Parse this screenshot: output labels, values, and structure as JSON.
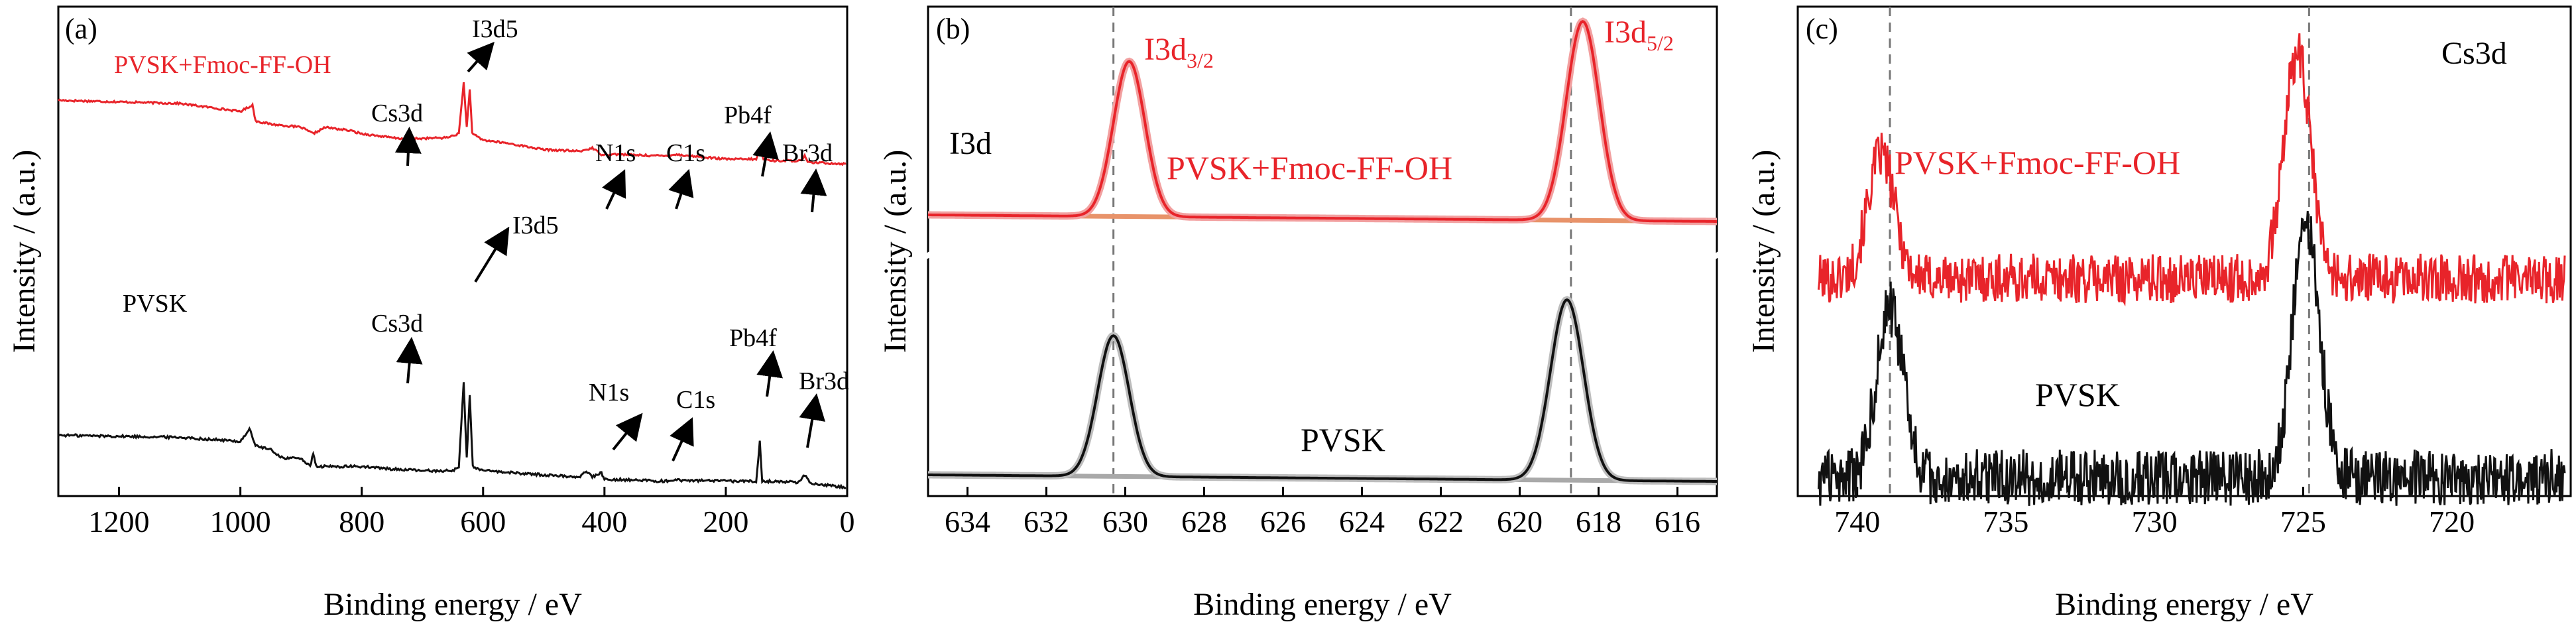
{
  "colors": {
    "red": "#e8242a",
    "black": "#111111",
    "base_red": "#e8936a",
    "base_black": "#a9a9a9",
    "dashed": "#777777"
  },
  "panels": [
    {
      "id": "a",
      "label": "(a)",
      "xlabel": "Binding energy / eV",
      "ylabel": "Intensity / (a.u.)",
      "xlim": [
        1300,
        0
      ],
      "xticks": [
        1200,
        1000,
        800,
        600,
        400,
        200,
        0
      ],
      "series": [
        {
          "name": "PVSK+Fmoc-FF-OH",
          "color_key": "red",
          "points": [
            [
              1300,
              0.87
            ],
            [
              1200,
              0.86
            ],
            [
              1100,
              0.85
            ],
            [
              1000,
              0.8
            ],
            [
              980,
              0.84
            ],
            [
              975,
              0.74
            ],
            [
              950,
              0.72
            ],
            [
              900,
              0.7
            ],
            [
              880,
              0.66
            ],
            [
              860,
              0.7
            ],
            [
              820,
              0.68
            ],
            [
              800,
              0.66
            ],
            [
              760,
              0.64
            ],
            [
              740,
              0.63
            ],
            [
              700,
              0.63
            ],
            [
              660,
              0.635
            ],
            [
              640,
              0.66
            ],
            [
              632,
              0.98
            ],
            [
              627,
              0.7
            ],
            [
              622,
              0.94
            ],
            [
              618,
              0.66
            ],
            [
              600,
              0.62
            ],
            [
              560,
              0.6
            ],
            [
              500,
              0.56
            ],
            [
              440,
              0.55
            ],
            [
              420,
              0.57
            ],
            [
              405,
              0.53
            ],
            [
              380,
              0.53
            ],
            [
              300,
              0.52
            ],
            [
              285,
              0.53
            ],
            [
              200,
              0.5
            ],
            [
              150,
              0.5
            ],
            [
              143,
              0.56
            ],
            [
              138,
              0.5
            ],
            [
              120,
              0.49
            ],
            [
              75,
              0.49
            ],
            [
              70,
              0.52
            ],
            [
              65,
              0.48
            ],
            [
              0,
              0.47
            ]
          ]
        },
        {
          "name": "PVSK",
          "color_key": "black",
          "points": [
            [
              1300,
              0.25
            ],
            [
              1200,
              0.245
            ],
            [
              1100,
              0.24
            ],
            [
              1000,
              0.22
            ],
            [
              985,
              0.28
            ],
            [
              975,
              0.2
            ],
            [
              950,
              0.18
            ],
            [
              930,
              0.14
            ],
            [
              900,
              0.14
            ],
            [
              885,
              0.1
            ],
            [
              880,
              0.16
            ],
            [
              875,
              0.1
            ],
            [
              840,
              0.1
            ],
            [
              800,
              0.1
            ],
            [
              760,
              0.09
            ],
            [
              700,
              0.08
            ],
            [
              650,
              0.08
            ],
            [
              640,
              0.1
            ],
            [
              632,
              0.5
            ],
            [
              627,
              0.14
            ],
            [
              622,
              0.44
            ],
            [
              617,
              0.1
            ],
            [
              600,
              0.08
            ],
            [
              500,
              0.06
            ],
            [
              440,
              0.05
            ],
            [
              430,
              0.08
            ],
            [
              420,
              0.05
            ],
            [
              405,
              0.07
            ],
            [
              400,
              0.04
            ],
            [
              300,
              0.03
            ],
            [
              285,
              0.035
            ],
            [
              200,
              0.03
            ],
            [
              150,
              0.03
            ],
            [
              144,
              0.22
            ],
            [
              140,
              0.03
            ],
            [
              80,
              0.025
            ],
            [
              70,
              0.06
            ],
            [
              60,
              0.02
            ],
            [
              0,
              0.0
            ]
          ]
        }
      ],
      "annotations": [
        {
          "text": "PVSK+Fmoc-FF-OH",
          "color_key": "red"
        },
        {
          "text": "PVSK",
          "color_key": "black"
        },
        {
          "text": "I3d5",
          "color_key": "black"
        },
        {
          "text": "Cs3d",
          "color_key": "black"
        },
        {
          "text": "N1s",
          "color_key": "black"
        },
        {
          "text": "C1s",
          "color_key": "black"
        },
        {
          "text": "Pb4f",
          "color_key": "black"
        },
        {
          "text": "Br3d",
          "color_key": "black"
        },
        {
          "text": "I3d5",
          "color_key": "black"
        },
        {
          "text": "Cs3d",
          "color_key": "black"
        },
        {
          "text": "N1s",
          "color_key": "black"
        },
        {
          "text": "C1s",
          "color_key": "black"
        },
        {
          "text": "Pb4f",
          "color_key": "black"
        },
        {
          "text": "Br3d",
          "color_key": "black"
        }
      ]
    },
    {
      "id": "b",
      "label": "(b)",
      "xlabel": "Binding energy / eV",
      "ylabel": "Intensity / (a.u.)",
      "xlim": [
        635,
        615
      ],
      "xticks": [
        634,
        632,
        630,
        628,
        626,
        624,
        622,
        620,
        618,
        616
      ],
      "dashed_x": [
        630.3,
        618.7
      ],
      "series": [
        {
          "name": "PVSK+Fmoc-FF-OH",
          "color_key": "red",
          "baseline": [
            0.0,
            0.0
          ],
          "peaks": [
            {
              "center": 629.9,
              "height": 0.78,
              "sigma": 0.4
            },
            {
              "center": 618.4,
              "height": 1.0,
              "sigma": 0.42
            }
          ]
        },
        {
          "name": "PVSK",
          "color_key": "black",
          "baseline": [
            0.0,
            0.0
          ],
          "peaks": [
            {
              "center": 630.3,
              "height": 0.78,
              "sigma": 0.4
            },
            {
              "center": 618.8,
              "height": 1.0,
              "sigma": 0.42
            }
          ]
        }
      ],
      "annotations": [
        {
          "text": "I3d",
          "color_key": "black"
        },
        {
          "text": "PVSK+Fmoc-FF-OH",
          "color_key": "red"
        },
        {
          "text": "PVSK",
          "color_key": "black"
        }
      ],
      "peak_labels": [
        {
          "main": "I3d",
          "sub": "3/2",
          "color_key": "red"
        },
        {
          "main": "I3d",
          "sub": "5/2",
          "color_key": "red"
        }
      ]
    },
    {
      "id": "c",
      "label": "(c)",
      "xlabel": "Binding energy / eV",
      "ylabel": "Intensity / (a.u.)",
      "xlim": [
        742,
        716
      ],
      "xticks": [
        740,
        735,
        730,
        725,
        720
      ],
      "dashed_x": [
        738.9,
        724.8
      ],
      "series": [
        {
          "name": "PVSK+Fmoc-FF-OH",
          "color_key": "red",
          "peaks": [
            {
              "center": 739.2,
              "height": 0.55,
              "sigma": 0.45
            },
            {
              "center": 725.2,
              "height": 1.0,
              "sigma": 0.45
            }
          ]
        },
        {
          "name": "PVSK",
          "color_key": "black",
          "peaks": [
            {
              "center": 738.9,
              "height": 0.65,
              "sigma": 0.45
            },
            {
              "center": 724.9,
              "height": 1.0,
              "sigma": 0.45
            }
          ]
        }
      ],
      "annotations": [
        {
          "text": "Cs3d",
          "color_key": "black"
        },
        {
          "text": "PVSK+Fmoc-FF-OH",
          "color_key": "red"
        },
        {
          "text": "PVSK",
          "color_key": "black"
        }
      ]
    }
  ],
  "chart_data": [
    {
      "type": "line",
      "panel": "(a)",
      "xlabel": "Binding energy / eV",
      "ylabel": "Intensity / (a.u.)",
      "xlim": [
        1300,
        0
      ],
      "xticks": [
        1200,
        1000,
        800,
        600,
        400,
        200,
        0
      ],
      "series": [
        {
          "name": "PVSK+Fmoc-FF-OH",
          "peaks_eV": {
            "I3d5": 620,
            "Cs3d": 725,
            "N1s": 400,
            "C1s": 285,
            "Pb4f": 140,
            "Br3d": 70
          }
        },
        {
          "name": "PVSK",
          "peaks_eV": {
            "I3d5": 620,
            "Cs3d": 725,
            "N1s": 400,
            "C1s": 285,
            "Pb4f": 140,
            "Br3d": 70
          }
        }
      ]
    },
    {
      "type": "line",
      "panel": "(b)",
      "xlabel": "Binding energy / eV",
      "ylabel": "Intensity / (a.u.)",
      "xlim": [
        635,
        615
      ],
      "xticks": [
        634,
        632,
        630,
        628,
        626,
        624,
        622,
        620,
        618,
        616
      ],
      "series": [
        {
          "name": "PVSK+Fmoc-FF-OH",
          "peaks_eV": {
            "I3d3/2": 629.9,
            "I3d5/2": 618.4
          }
        },
        {
          "name": "PVSK",
          "peaks_eV": {
            "I3d3/2": 630.3,
            "I3d5/2": 618.8
          }
        }
      ]
    },
    {
      "type": "line",
      "panel": "(c)",
      "xlabel": "Binding energy / eV",
      "ylabel": "Intensity / (a.u.)",
      "xlim": [
        742,
        716
      ],
      "xticks": [
        740,
        735,
        730,
        725,
        720
      ],
      "series": [
        {
          "name": "PVSK+Fmoc-FF-OH",
          "peaks_eV": {
            "Cs3d3/2": 739.2,
            "Cs3d5/2": 725.2
          }
        },
        {
          "name": "PVSK",
          "peaks_eV": {
            "Cs3d3/2": 738.9,
            "Cs3d5/2": 724.9
          }
        }
      ]
    }
  ]
}
